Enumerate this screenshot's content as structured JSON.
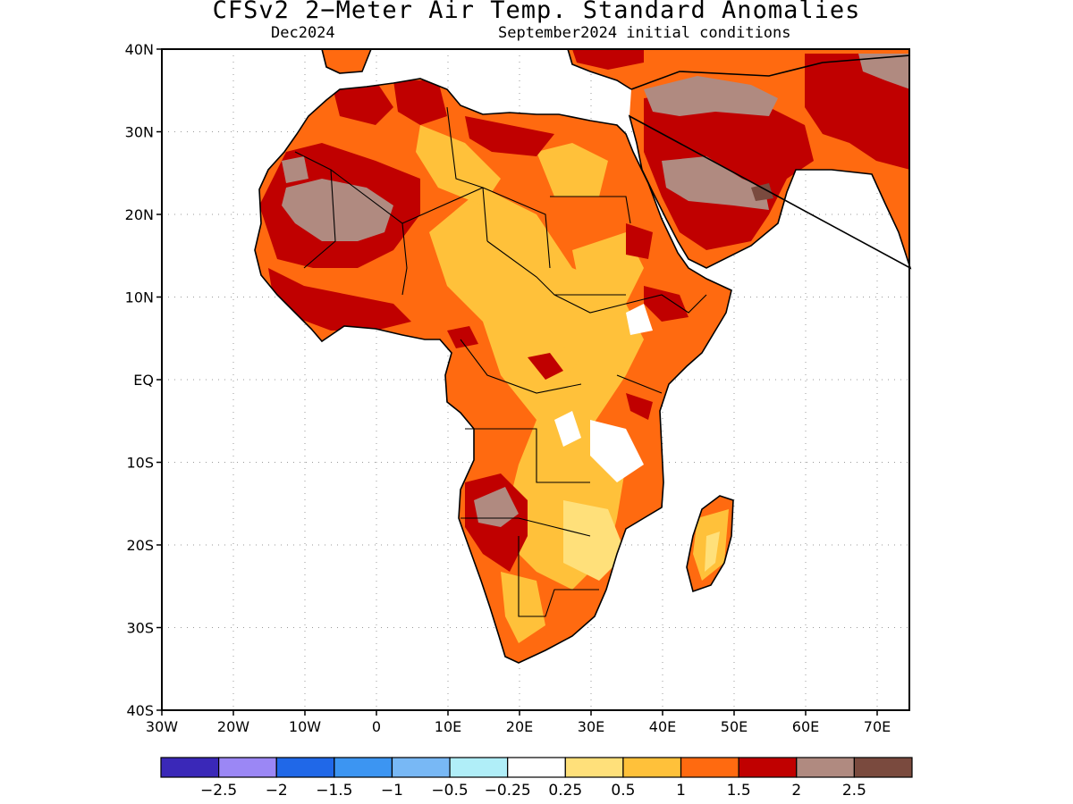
{
  "header": {
    "title": "CFSv2 2−Meter Air Temp. Standard Anomalies",
    "valid_month": "Dec2024",
    "initial_conditions": "September2024 initial conditions"
  },
  "map": {
    "lat_labels": [
      "40N",
      "30N",
      "20N",
      "10N",
      "EQ",
      "10S",
      "20S",
      "30S",
      "40S"
    ],
    "lon_labels": [
      "30W",
      "20W",
      "10W",
      "0",
      "10E",
      "20E",
      "30E",
      "40E",
      "50E",
      "60E",
      "70E"
    ]
  },
  "colorbar": {
    "colors": [
      "#3a28b8",
      "#9b87f5",
      "#2068e8",
      "#3c95f2",
      "#78b8f5",
      "#b0eef8",
      "#ffffff",
      "#ffe07a",
      "#ffc13a",
      "#ff6a10",
      "#c00000",
      "#b08a80",
      "#7a4a3e"
    ],
    "labels": [
      "−2.5",
      "−2",
      "−1.5",
      "−1",
      "−0.5",
      "−0.25",
      "0.25",
      "0.5",
      "1",
      "1.5",
      "2",
      "2.5"
    ]
  }
}
